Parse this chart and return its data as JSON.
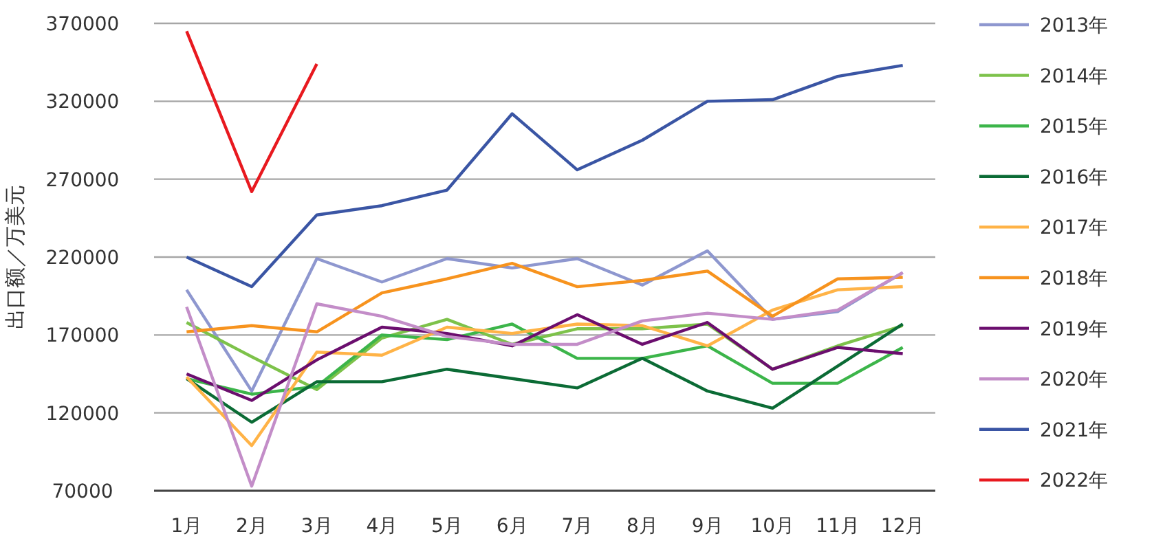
{
  "chart_data": {
    "type": "line",
    "ylabel": "出口额／万美元",
    "categories": [
      "1月",
      "2月",
      "3月",
      "4月",
      "5月",
      "6月",
      "7月",
      "8月",
      "9月",
      "10月",
      "11月",
      "12月"
    ],
    "ylim": [
      70000,
      370000
    ],
    "yticks": [
      70000,
      120000,
      170000,
      220000,
      270000,
      320000,
      370000
    ],
    "grid": "y",
    "legend": "right",
    "marker": "none",
    "line_style": "solid",
    "series": [
      {
        "name": "2013年",
        "color": "#8e97cf",
        "values": [
          199000,
          134000,
          219000,
          204000,
          219000,
          213000,
          219000,
          202000,
          224000,
          180000,
          185000,
          210000
        ]
      },
      {
        "name": "2014年",
        "color": "#7dc24a",
        "values": [
          178000,
          156000,
          135000,
          168000,
          180000,
          164000,
          174000,
          174000,
          177000,
          148000,
          163000,
          176000
        ]
      },
      {
        "name": "2015年",
        "color": "#3cb54a",
        "values": [
          142000,
          132000,
          137000,
          170000,
          167000,
          177000,
          155000,
          155000,
          163000,
          139000,
          139000,
          162000
        ]
      },
      {
        "name": "2016年",
        "color": "#0b6b35",
        "values": [
          142000,
          114000,
          140000,
          140000,
          148000,
          142000,
          136000,
          155000,
          134000,
          123000,
          150000,
          177000
        ]
      },
      {
        "name": "2017年",
        "color": "#ffb347",
        "values": [
          143000,
          99000,
          159000,
          157000,
          175000,
          171000,
          177000,
          176000,
          163000,
          186000,
          199000,
          201000
        ]
      },
      {
        "name": "2018年",
        "color": "#f7931e",
        "values": [
          172000,
          176000,
          172000,
          197000,
          206000,
          216000,
          201000,
          205000,
          211000,
          182000,
          206000,
          207000
        ]
      },
      {
        "name": "2019年",
        "color": "#6b0e6e",
        "values": [
          145000,
          128000,
          154000,
          175000,
          171000,
          163000,
          183000,
          164000,
          178000,
          148000,
          162000,
          158000
        ]
      },
      {
        "name": "2020年",
        "color": "#c38dc8",
        "values": [
          188000,
          73000,
          190000,
          182000,
          169000,
          164000,
          164000,
          179000,
          184000,
          180000,
          186000,
          210000
        ]
      },
      {
        "name": "2021年",
        "color": "#3a55a4",
        "values": [
          220000,
          201000,
          247000,
          253000,
          263000,
          312000,
          276000,
          295000,
          320000,
          321000,
          336000,
          343000
        ]
      },
      {
        "name": "2022年",
        "color": "#e8191f",
        "values": [
          365000,
          262000,
          344000,
          null,
          null,
          null,
          null,
          null,
          null,
          null,
          null,
          null
        ]
      }
    ]
  }
}
